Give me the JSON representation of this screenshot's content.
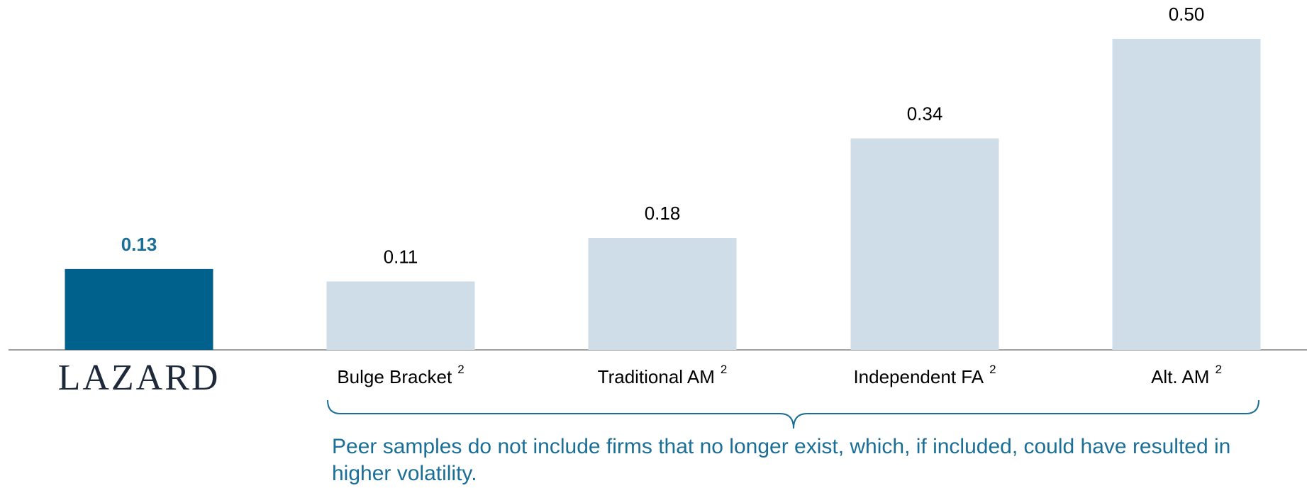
{
  "chart_data": {
    "type": "bar",
    "categories": [
      "LAZARD",
      "Bulge Bracket",
      "Traditional AM",
      "Independent FA",
      "Alt. AM"
    ],
    "category_notes": [
      null,
      "2",
      "2",
      "2",
      "2"
    ],
    "values": [
      0.13,
      0.11,
      0.18,
      0.34,
      0.5
    ],
    "value_labels": [
      "0.13",
      "0.11",
      "0.18",
      "0.34",
      "0.50"
    ],
    "colors": [
      "#00618c",
      "#cfdde8",
      "#cfdde8",
      "#cfdde8",
      "#cfdde8"
    ],
    "note": "Peer samples do not include firms that no longer exist, which, if included, could have resulted in higher volatility."
  }
}
